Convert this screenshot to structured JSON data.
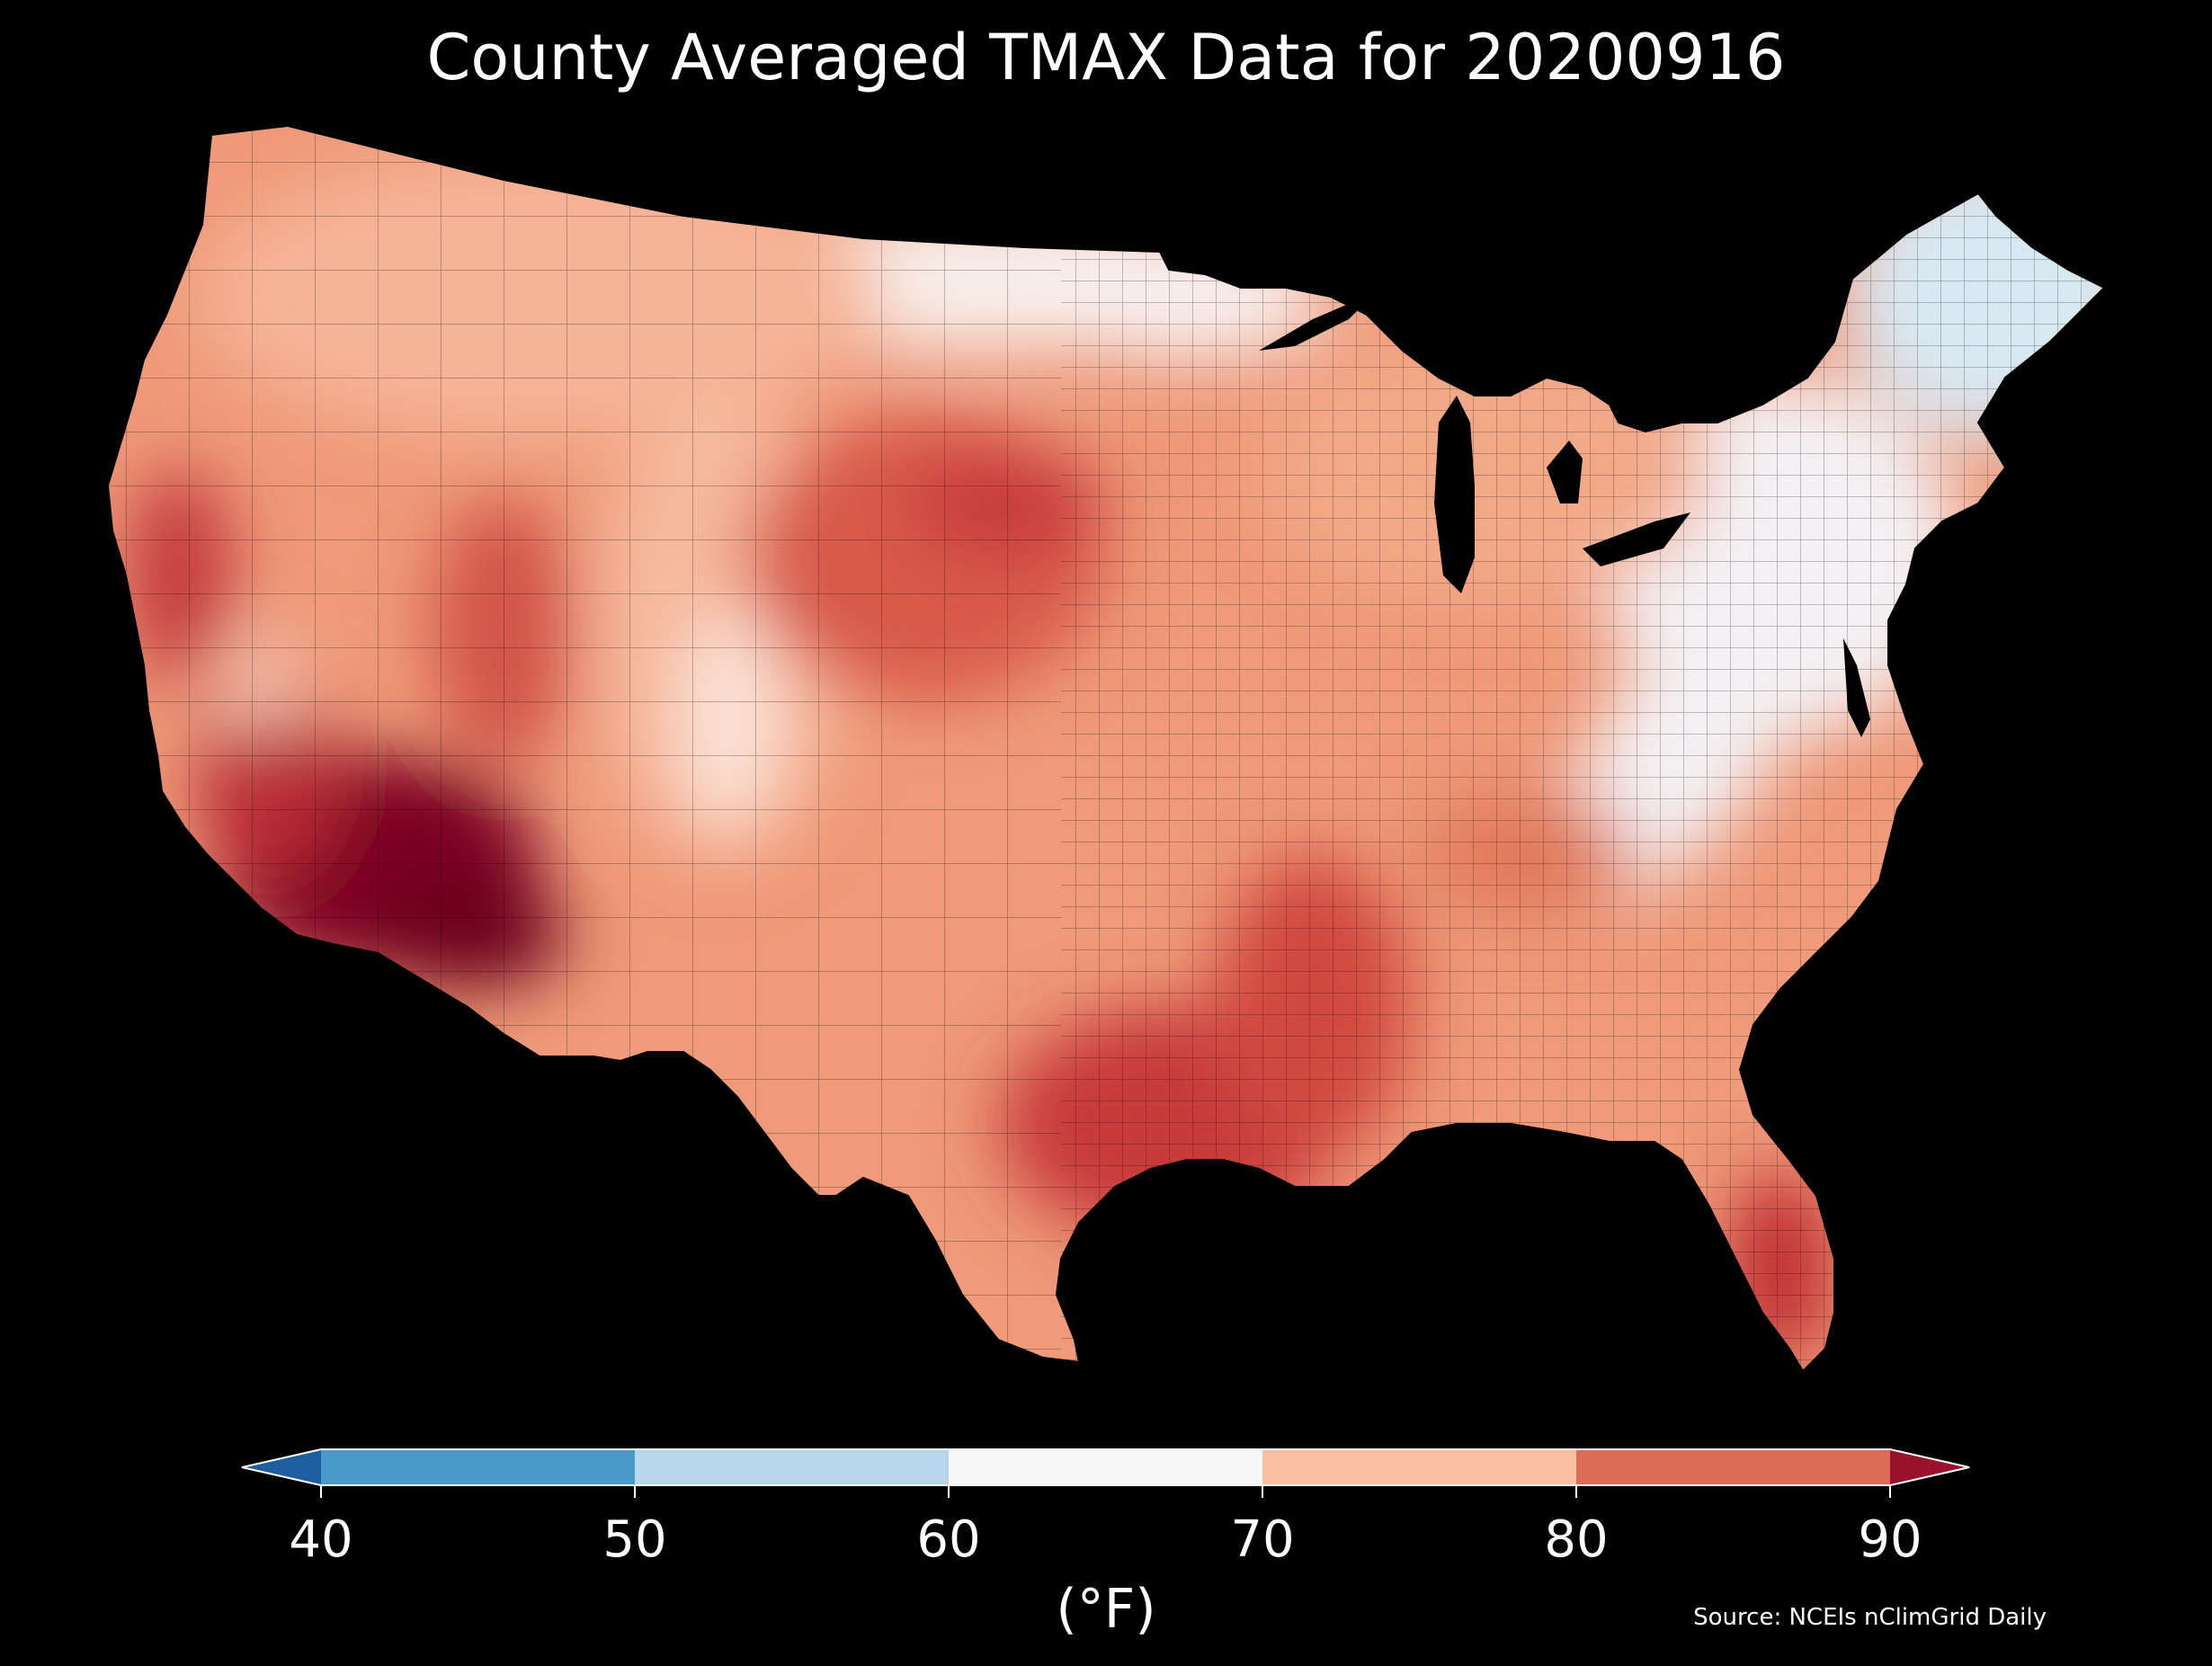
{
  "title": "County Averaged TMAX Data for 20200916",
  "colorbar": {
    "ticks": [
      "40",
      "50",
      "60",
      "70",
      "80",
      "90"
    ],
    "label": "(°F)",
    "bins": [
      {
        "color": "#1c5ea0"
      },
      {
        "color": "#4a99c8"
      },
      {
        "color": "#b6d7ea"
      },
      {
        "color": "#f7f7f7"
      },
      {
        "color": "#f9c0a2"
      },
      {
        "color": "#dc6b58"
      },
      {
        "color": "#9a1229"
      }
    ]
  },
  "source": "Source: NCEIs nClimGrid Daily",
  "colors": {
    "background": "#000000",
    "hot": "#7a0020",
    "red": "#c73a3a",
    "mid": "#e98265",
    "light": "#f5b496",
    "pale": "#fbe6dc",
    "cool": "#d8e8f3"
  }
}
